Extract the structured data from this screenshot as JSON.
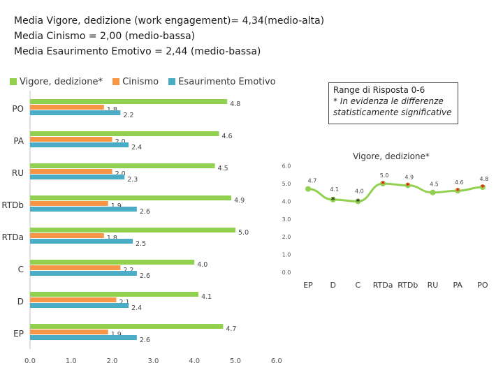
{
  "header": {
    "line1": "Media Vigore, dedizione (work engagement)= 4,34(medio-alta)",
    "line2": "Media Cinismo = 2,00 (medio-bassa)",
    "line3": "Media Esaurimento Emotivo = 2,44 (medio-bassa)"
  },
  "note": {
    "line1": "Range di Risposta 0-6",
    "line2": "* In evidenza le differenze statisticamente significative"
  },
  "colors": {
    "vigore": "#92D050",
    "cinismo": "#F79646",
    "esaurimento": "#4BACC6",
    "axis": "#BFBFBF",
    "marker_sig": "#FF0000",
    "marker_ns": "#222222"
  },
  "chart_data": [
    {
      "type": "bar",
      "orientation": "horizontal",
      "categories": [
        "PO",
        "PA",
        "RU",
        "RTDb",
        "RTDa",
        "C",
        "D",
        "EP"
      ],
      "series": [
        {
          "name": "Vigore, dedizione*",
          "values": [
            4.8,
            4.6,
            4.5,
            4.9,
            5.0,
            4.0,
            4.1,
            4.7
          ]
        },
        {
          "name": "Cinismo",
          "values": [
            1.8,
            2.0,
            2.0,
            1.9,
            1.8,
            2.2,
            2.1,
            1.9
          ]
        },
        {
          "name": "Esaurimento Emotivo",
          "values": [
            2.2,
            2.4,
            2.3,
            2.6,
            2.5,
            2.6,
            2.4,
            2.6
          ]
        }
      ],
      "value_labels": [
        [
          "4.8",
          "4.6",
          "4.5",
          "4.9",
          "5.0",
          "4.0",
          "4.1",
          "4.7"
        ],
        [
          "1.8",
          "2.0",
          "2.0",
          "1.9",
          "1.8",
          "2.2",
          "2.1",
          "1.9"
        ],
        [
          "2.2",
          "2.4",
          "2.3",
          "2.6",
          "2.5",
          "2.6",
          "2.4",
          "2.6"
        ]
      ],
      "xlim": [
        0,
        6
      ],
      "xticks": [
        "0.0",
        "1.0",
        "2.0",
        "3.0",
        "4.0",
        "5.0",
        "6.0"
      ],
      "legend": "top-left"
    },
    {
      "type": "line",
      "title": "Vigore, dedizione*",
      "categories": [
        "EP",
        "D",
        "C",
        "RTDa",
        "RTDb",
        "RU",
        "PA",
        "PO"
      ],
      "values": [
        4.7,
        4.1,
        4.0,
        5.0,
        4.9,
        4.5,
        4.6,
        4.8
      ],
      "value_labels": [
        "4.7",
        "4.1",
        "4.0",
        "5.0",
        "4.9",
        "4.5",
        "4.6",
        "4.8"
      ],
      "significant": [
        false,
        true,
        true,
        true,
        true,
        false,
        true,
        true
      ],
      "ylim": [
        0,
        6
      ],
      "yticks": [
        "0.0",
        "1.0",
        "2.0",
        "3.0",
        "4.0",
        "5.0",
        "6.0"
      ],
      "grid": false
    }
  ]
}
